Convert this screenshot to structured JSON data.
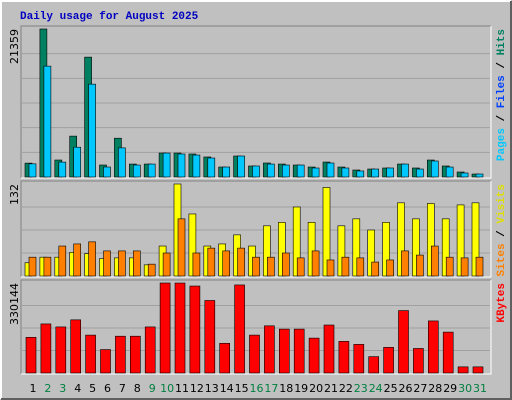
{
  "title": "Daily usage for August 2025",
  "chart_data": [
    {
      "type": "bar",
      "ylim": [
        0,
        21359
      ],
      "grid_divisions": 6,
      "legend_separator": "/",
      "legend": [
        {
          "name": "Pages",
          "color": "#00c8ff"
        },
        {
          "name": "Files",
          "color": "#0040ff"
        },
        {
          "name": "Hits",
          "color": "#008060"
        }
      ],
      "series": [
        {
          "name": "Hits",
          "color": "#008060",
          "values": [
            2000,
            21359,
            2450,
            5900,
            17300,
            1730,
            5600,
            1870,
            1870,
            3460,
            3460,
            3320,
            2890,
            1440,
            3030,
            1590,
            2020,
            1870,
            1730,
            1440,
            2160,
            1440,
            1010,
            1150,
            1300,
            1870,
            1300,
            2450,
            1590,
            720,
            430
          ]
        },
        {
          "name": "Pages",
          "color": "#00c8ff",
          "values": [
            1900,
            16000,
            2150,
            4300,
            13400,
            1440,
            4200,
            1730,
            1870,
            3460,
            3320,
            3170,
            2740,
            1440,
            3030,
            1590,
            1870,
            1730,
            1730,
            1300,
            2020,
            1300,
            870,
            1150,
            1300,
            1870,
            1150,
            2310,
            1440,
            580,
            430
          ]
        }
      ]
    },
    {
      "type": "bar",
      "ylim": [
        0,
        132
      ],
      "grid_divisions": 4,
      "legend_separator": "/",
      "legend": [
        {
          "name": "Sites",
          "color": "#ff8000"
        },
        {
          "name": "Visits",
          "color": "#e0e000"
        }
      ],
      "series": [
        {
          "name": "Visits",
          "color": "#ffff00",
          "values": [
            19,
            27,
            27,
            34,
            32,
            25,
            26,
            26,
            16,
            43,
            132,
            89,
            43,
            46,
            59,
            43,
            72,
            77,
            99,
            77,
            127,
            72,
            82,
            66,
            77,
            105,
            82,
            104,
            82,
            102,
            105
          ]
        },
        {
          "name": "Sites",
          "color": "#ff8000",
          "values": [
            27,
            27,
            43,
            46,
            49,
            36,
            36,
            36,
            17,
            33,
            82,
            33,
            40,
            36,
            40,
            27,
            27,
            33,
            26,
            36,
            23,
            27,
            26,
            20,
            23,
            36,
            30,
            43,
            27,
            26,
            27
          ]
        }
      ]
    },
    {
      "type": "bar",
      "ylim": [
        0,
        330144
      ],
      "grid_divisions": 4,
      "legend": [
        {
          "name": "KBytes",
          "color": "#ff0000"
        }
      ],
      "categories": [
        "1",
        "2",
        "3",
        "4",
        "5",
        "6",
        "7",
        "8",
        "9",
        "10",
        "11",
        "12",
        "13",
        "14",
        "15",
        "16",
        "17",
        "18",
        "19",
        "20",
        "21",
        "22",
        "23",
        "24",
        "25",
        "26",
        "27",
        "28",
        "29",
        "30",
        "31"
      ],
      "highlight_categories": [
        1,
        2,
        8,
        9,
        15,
        16,
        22,
        23,
        29,
        30
      ],
      "highlight_color": "#008040",
      "series": [
        {
          "name": "KBytes",
          "color": "#ff0000",
          "values": [
            131000,
            180000,
            169000,
            195000,
            139000,
            86000,
            135000,
            135000,
            169000,
            330144,
            330000,
            319000,
            266000,
            109000,
            323000,
            139000,
            173000,
            161000,
            161000,
            128000,
            176000,
            116000,
            105000,
            60000,
            94000,
            229000,
            90000,
            191000,
            150000,
            22500,
            22500
          ]
        }
      ]
    }
  ]
}
